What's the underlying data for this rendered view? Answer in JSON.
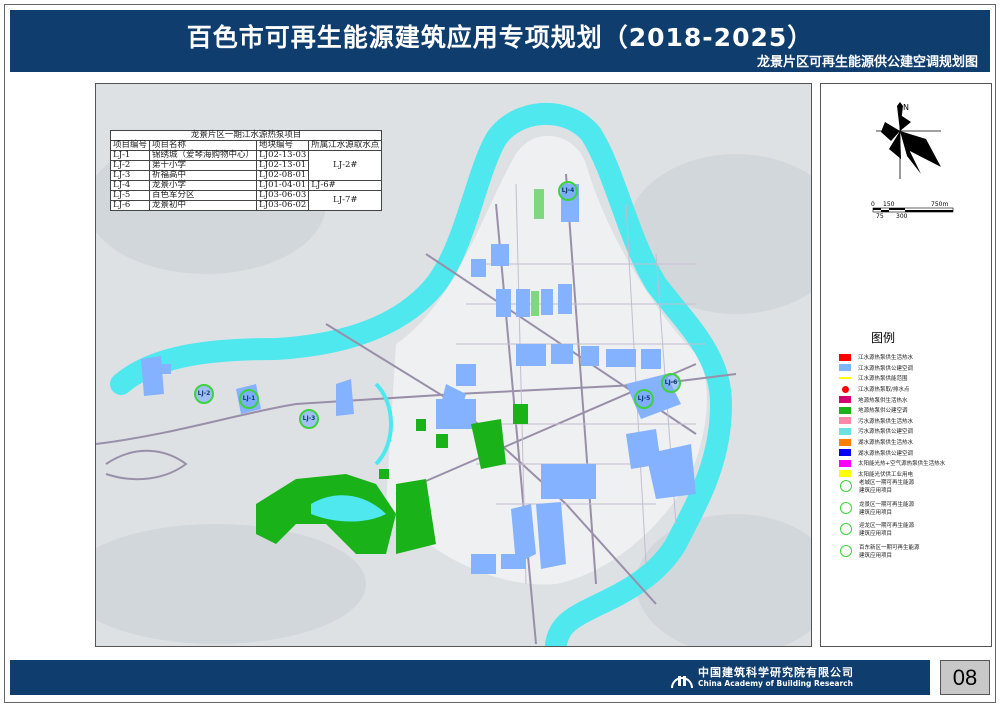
{
  "header": {
    "title": "百色市可再生能源建筑应用专项规划（2018-2025）",
    "subtitle": "龙景片区可再生能源供公建空调规划图"
  },
  "table": {
    "caption": "龙景片区一期江水源热泵项目",
    "columns": [
      "项目编号",
      "项目名称",
      "地块编号",
      "所属江水源取水点"
    ],
    "rows": [
      [
        "LJ-1",
        "锦绣城（爱琴海购物中心）",
        "LJ02-13-03",
        "LJ-2#"
      ],
      [
        "LJ-2",
        "第十小学",
        "LJ02-13-01",
        ""
      ],
      [
        "LJ-3",
        "祈福高中",
        "LJ02-08-01",
        ""
      ],
      [
        "LJ-4",
        "龙景小学",
        "LJ01-04-01",
        "LJ-6#"
      ],
      [
        "LJ-5",
        "百色军分区",
        "LJ03-06-03",
        "LJ-7#"
      ],
      [
        "LJ-6",
        "龙景初中",
        "LJ03-06-02",
        ""
      ]
    ]
  },
  "map_markers": [
    "LJ-2",
    "LJ-1",
    "LJ-3",
    "LJ-4",
    "LJ-5",
    "LJ-6"
  ],
  "compass": {
    "north_label": "N"
  },
  "scale_bar": {
    "top_labels": [
      "0",
      "150",
      "750m"
    ],
    "bottom_labels": [
      "75",
      "300"
    ]
  },
  "legend": {
    "title": "图例",
    "items": [
      {
        "label": "江水源热泵供生活热水",
        "color": "#ff0000"
      },
      {
        "label": "江水源热泵供公建空调",
        "color": "#7db6ff"
      },
      {
        "label": "江水源热泵供能范围",
        "color": "#ffff00",
        "style": "line"
      },
      {
        "label": "江水源热泵取/排水点",
        "color": "#ff0000",
        "style": "dot"
      },
      {
        "label": "地源热泵供生活热水",
        "color": "#d4006e"
      },
      {
        "label": "地源热泵供公建空调",
        "color": "#19b219"
      },
      {
        "label": "污水源热泵供生活热水",
        "color": "#ff88aa"
      },
      {
        "label": "污水源热泵供公建空调",
        "color": "#6ee0e0"
      },
      {
        "label": "湖水源热泵供生活热水",
        "color": "#ff8000"
      },
      {
        "label": "湖水源热泵供公建空调",
        "color": "#0000ff"
      },
      {
        "label": "太阳能光热+空气源热泵供生活热水",
        "color": "#ff00ff"
      },
      {
        "label": "太阳能光伏供工业用电",
        "color": "#ffff00"
      }
    ],
    "project_items": [
      {
        "label": "老城区一期可再生能源",
        "label2": "建筑应用项目",
        "code": "LC"
      },
      {
        "label": "龙景区一期可再生能源",
        "label2": "建筑应用项目",
        "code": "LJ"
      },
      {
        "label": "迎龙区一期可再生能源",
        "label2": "建筑应用项目",
        "code": "YL"
      },
      {
        "label": "百东新区一期可再生能源",
        "label2": "建筑应用项目",
        "code": "BD"
      }
    ]
  },
  "footer": {
    "org_cn": "中国建筑科学研究院有限公司",
    "org_en": "China Academy of Building Research",
    "page": "08"
  }
}
